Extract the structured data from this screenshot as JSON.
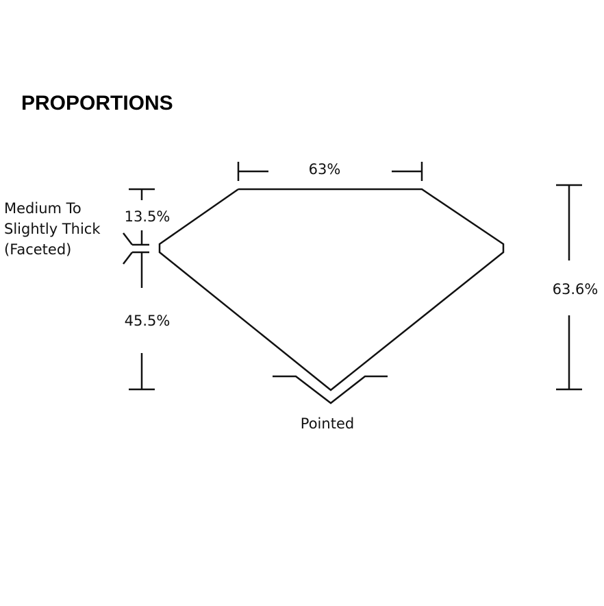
{
  "title": "PROPORTIONS",
  "labels": {
    "table": "63%",
    "crown_height": "13.5%",
    "pavilion_depth": "45.5%",
    "total_depth": "63.6%",
    "girdle": [
      "Medium To",
      "Slightly Thick",
      "(Faceted)"
    ],
    "culet": "Pointed"
  }
}
